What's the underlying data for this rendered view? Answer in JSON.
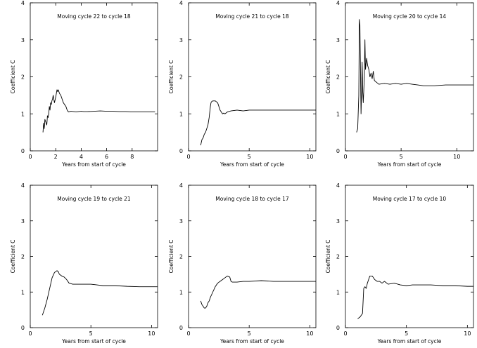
{
  "figure": {
    "title": "",
    "background": "#ffffff",
    "line_color": "#000000"
  },
  "chart_data": [
    {
      "type": "line",
      "title": "Moving cycle 22 to cycle 18",
      "xlabel": "Years from start of cycle",
      "ylabel": "Coefficient C",
      "xlim": [
        0,
        10
      ],
      "ylim": [
        0,
        4
      ],
      "xticks": [
        0,
        2,
        4,
        6,
        8
      ],
      "yticks": [
        0,
        1,
        2,
        3,
        4
      ],
      "series": [
        {
          "x": [
            1.0,
            1.05,
            1.1,
            1.15,
            1.2,
            1.3,
            1.35,
            1.4,
            1.45,
            1.5,
            1.55,
            1.6,
            1.65,
            1.7,
            1.75,
            1.8,
            1.9,
            2.0,
            2.1,
            2.15,
            2.2,
            2.3,
            2.4,
            2.5,
            2.6,
            2.7,
            2.8,
            2.9,
            3.0,
            3.1,
            3.2,
            3.4,
            3.6,
            3.8,
            4.0,
            4.2,
            4.5,
            5.0,
            5.5,
            6.0,
            6.5,
            7.0,
            7.5,
            8.0,
            8.5,
            9.0,
            9.5,
            9.8
          ],
          "y": [
            0.5,
            0.75,
            0.6,
            0.85,
            0.8,
            0.7,
            0.95,
            0.9,
            1.0,
            1.2,
            1.1,
            1.3,
            1.25,
            1.35,
            1.4,
            1.5,
            1.3,
            1.45,
            1.65,
            1.6,
            1.65,
            1.55,
            1.5,
            1.4,
            1.3,
            1.25,
            1.2,
            1.1,
            1.05,
            1.06,
            1.07,
            1.06,
            1.05,
            1.06,
            1.07,
            1.06,
            1.06,
            1.07,
            1.08,
            1.07,
            1.07,
            1.06,
            1.06,
            1.05,
            1.05,
            1.05,
            1.05,
            1.05
          ]
        }
      ]
    },
    {
      "type": "line",
      "title": "Moving cycle 21 to cycle 18",
      "xlabel": "Years from start of cycle",
      "ylabel": "Coefficient C",
      "xlim": [
        0,
        10.5
      ],
      "ylim": [
        0,
        4
      ],
      "xticks": [
        0,
        5,
        10
      ],
      "yticks": [
        0,
        1,
        2,
        3,
        4
      ],
      "series": [
        {
          "x": [
            1.0,
            1.1,
            1.2,
            1.3,
            1.4,
            1.5,
            1.6,
            1.7,
            1.8,
            1.85,
            1.9,
            2.0,
            2.2,
            2.4,
            2.5,
            2.6,
            2.7,
            2.8,
            2.9,
            3.0,
            3.2,
            3.5,
            4.0,
            4.5,
            5.0,
            6.0,
            7.0,
            8.0,
            9.0,
            10.0,
            10.5
          ],
          "y": [
            0.15,
            0.3,
            0.35,
            0.45,
            0.5,
            0.6,
            0.7,
            0.9,
            1.2,
            1.3,
            1.33,
            1.35,
            1.35,
            1.3,
            1.2,
            1.1,
            1.05,
            1.0,
            1.02,
            1.0,
            1.05,
            1.08,
            1.1,
            1.08,
            1.1,
            1.1,
            1.1,
            1.1,
            1.1,
            1.1,
            1.1
          ]
        }
      ]
    },
    {
      "type": "line",
      "title": "Moving cycle 20 to cycle 14",
      "xlabel": "Years from start of cycle",
      "ylabel": "Coefficient C",
      "xlim": [
        0,
        11.5
      ],
      "ylim": [
        0,
        4
      ],
      "xticks": [
        0,
        5,
        10
      ],
      "yticks": [
        0,
        1,
        2,
        3,
        4
      ],
      "series": [
        {
          "x": [
            1.0,
            1.1,
            1.2,
            1.25,
            1.3,
            1.35,
            1.4,
            1.45,
            1.5,
            1.55,
            1.6,
            1.7,
            1.75,
            1.8,
            1.9,
            2.0,
            2.1,
            2.2,
            2.3,
            2.4,
            2.5,
            2.6,
            2.8,
            3.0,
            3.5,
            4.0,
            4.5,
            5.0,
            5.5,
            6.0,
            6.5,
            7.0,
            8.0,
            9.0,
            10.0,
            11.5
          ],
          "y": [
            0.5,
            0.6,
            1.5,
            3.55,
            3.4,
            2.2,
            1.0,
            1.6,
            2.4,
            1.6,
            1.3,
            2.0,
            3.0,
            2.2,
            2.5,
            2.3,
            2.2,
            2.0,
            2.1,
            1.95,
            2.15,
            1.9,
            1.85,
            1.8,
            1.82,
            1.8,
            1.82,
            1.8,
            1.82,
            1.8,
            1.78,
            1.76,
            1.76,
            1.78,
            1.78,
            1.78
          ]
        }
      ]
    },
    {
      "type": "line",
      "title": "Moving cycle 19 to cycle 21",
      "xlabel": "Years from start of cycle",
      "ylabel": "Coefficient C",
      "xlim": [
        0,
        10.5
      ],
      "ylim": [
        0,
        4
      ],
      "xticks": [
        0,
        5,
        10
      ],
      "yticks": [
        0,
        1,
        2,
        3,
        4
      ],
      "series": [
        {
          "x": [
            1.0,
            1.2,
            1.4,
            1.6,
            1.8,
            2.0,
            2.2,
            2.3,
            2.4,
            2.6,
            2.8,
            3.0,
            3.2,
            3.5,
            4.0,
            5.0,
            5.5,
            6.0,
            7.0,
            8.0,
            9.0,
            10.0,
            10.5
          ],
          "y": [
            0.35,
            0.55,
            0.8,
            1.1,
            1.4,
            1.55,
            1.6,
            1.58,
            1.5,
            1.45,
            1.42,
            1.35,
            1.25,
            1.22,
            1.22,
            1.22,
            1.2,
            1.18,
            1.18,
            1.16,
            1.15,
            1.15,
            1.15
          ]
        }
      ]
    },
    {
      "type": "line",
      "title": "Moving cycle 18 to cycle 17",
      "xlabel": "Years from start of cycle",
      "ylabel": "Coefficient C",
      "xlim": [
        0,
        10.5
      ],
      "ylim": [
        0,
        4
      ],
      "xticks": [
        0,
        5,
        10
      ],
      "yticks": [
        0,
        1,
        2,
        3,
        4
      ],
      "series": [
        {
          "x": [
            1.0,
            1.1,
            1.2,
            1.3,
            1.4,
            1.5,
            1.6,
            1.7,
            1.8,
            2.0,
            2.2,
            2.4,
            2.6,
            2.8,
            3.0,
            3.2,
            3.4,
            3.5,
            3.6,
            3.8,
            4.0,
            4.5,
            5.0,
            6.0,
            7.0,
            8.0,
            9.0,
            10.0,
            10.5
          ],
          "y": [
            0.75,
            0.65,
            0.6,
            0.55,
            0.55,
            0.6,
            0.7,
            0.75,
            0.85,
            1.0,
            1.15,
            1.25,
            1.3,
            1.35,
            1.4,
            1.45,
            1.42,
            1.3,
            1.28,
            1.28,
            1.28,
            1.3,
            1.3,
            1.32,
            1.3,
            1.3,
            1.3,
            1.3,
            1.3
          ]
        }
      ]
    },
    {
      "type": "line",
      "title": "Moving cycle 17 to cycle 10",
      "xlabel": "Years from start of cycle",
      "ylabel": "Coefficient C",
      "xlim": [
        0,
        10.5
      ],
      "ylim": [
        0,
        4
      ],
      "xticks": [
        0,
        5,
        10
      ],
      "yticks": [
        0,
        1,
        2,
        3,
        4
      ],
      "series": [
        {
          "x": [
            1.0,
            1.2,
            1.4,
            1.5,
            1.6,
            1.7,
            1.8,
            2.0,
            2.2,
            2.4,
            2.6,
            2.8,
            3.0,
            3.2,
            3.5,
            4.0,
            4.5,
            5.0,
            5.5,
            6.0,
            7.0,
            8.0,
            9.0,
            10.0,
            10.5
          ],
          "y": [
            0.25,
            0.3,
            0.4,
            1.1,
            1.15,
            1.1,
            1.25,
            1.45,
            1.45,
            1.35,
            1.3,
            1.3,
            1.25,
            1.3,
            1.22,
            1.25,
            1.2,
            1.18,
            1.2,
            1.2,
            1.2,
            1.18,
            1.18,
            1.16,
            1.16
          ]
        }
      ]
    }
  ]
}
